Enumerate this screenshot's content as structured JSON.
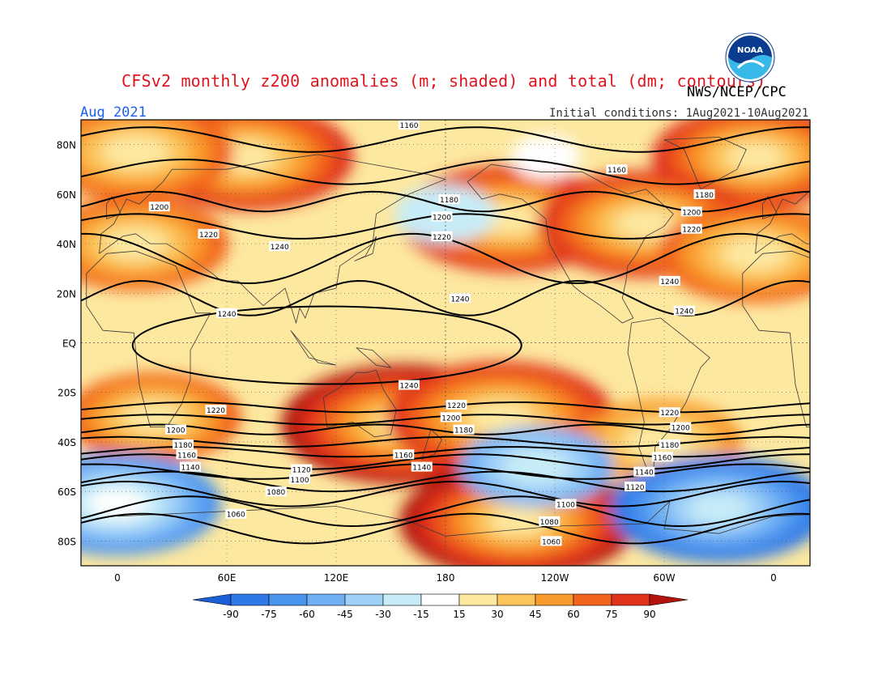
{
  "header": {
    "title": "CFSv2 monthly z200 anomalies (m; shaded) and total (dm; contours)",
    "agency": "NWS/NCEP/CPC",
    "month": "Aug 2021",
    "initial_conditions": "Initial conditions: 1Aug2021-10Aug2021",
    "logo_text": "NOAA"
  },
  "map": {
    "lon_range": [
      -20,
      380
    ],
    "lat_range": [
      -90,
      90
    ],
    "lat_ticks": [
      {
        "lat": 80,
        "label": "80N"
      },
      {
        "lat": 60,
        "label": "60N"
      },
      {
        "lat": 40,
        "label": "40N"
      },
      {
        "lat": 20,
        "label": "20N"
      },
      {
        "lat": 0,
        "label": "EQ"
      },
      {
        "lat": -20,
        "label": "20S"
      },
      {
        "lat": -40,
        "label": "40S"
      },
      {
        "lat": -60,
        "label": "60S"
      },
      {
        "lat": -80,
        "label": "80S"
      }
    ],
    "lon_ticks": [
      {
        "lon": 0,
        "label": "0"
      },
      {
        "lon": 60,
        "label": "60E"
      },
      {
        "lon": 120,
        "label": "120E"
      },
      {
        "lon": 180,
        "label": "180"
      },
      {
        "lon": 240,
        "label": "120W"
      },
      {
        "lon": 300,
        "label": "60W"
      },
      {
        "lon": 360,
        "label": "0"
      }
    ],
    "contour_labels": [
      {
        "lon": 160,
        "lat": 88,
        "text": "1160"
      },
      {
        "lon": 274,
        "lat": 70,
        "text": "1160"
      },
      {
        "lon": 182,
        "lat": 58,
        "text": "1180"
      },
      {
        "lon": 322,
        "lat": 60,
        "text": "1180"
      },
      {
        "lon": 23,
        "lat": 55,
        "text": "1200"
      },
      {
        "lon": 178,
        "lat": 51,
        "text": "1200"
      },
      {
        "lon": 315,
        "lat": 53,
        "text": "1200"
      },
      {
        "lon": 50,
        "lat": 44,
        "text": "1220"
      },
      {
        "lon": 178,
        "lat": 43,
        "text": "1220"
      },
      {
        "lon": 315,
        "lat": 46,
        "text": "1220"
      },
      {
        "lon": 89,
        "lat": 39,
        "text": "1240"
      },
      {
        "lon": 188,
        "lat": 18,
        "text": "1240"
      },
      {
        "lon": 303,
        "lat": 25,
        "text": "1240"
      },
      {
        "lon": 311,
        "lat": 13,
        "text": "1240"
      },
      {
        "lon": 60,
        "lat": 12,
        "text": "1240"
      },
      {
        "lon": 160,
        "lat": -17,
        "text": "1240"
      },
      {
        "lon": 54,
        "lat": -27,
        "text": "1220"
      },
      {
        "lon": 186,
        "lat": -25,
        "text": "1220"
      },
      {
        "lon": 303,
        "lat": -28,
        "text": "1220"
      },
      {
        "lon": 183,
        "lat": -30,
        "text": "1200"
      },
      {
        "lon": 309,
        "lat": -34,
        "text": "1200"
      },
      {
        "lon": 32,
        "lat": -35,
        "text": "1200"
      },
      {
        "lon": 190,
        "lat": -35,
        "text": "1180"
      },
      {
        "lon": 303,
        "lat": -41,
        "text": "1180"
      },
      {
        "lon": 36,
        "lat": -41,
        "text": "1180"
      },
      {
        "lon": 299,
        "lat": -46,
        "text": "1160"
      },
      {
        "lon": 38,
        "lat": -45,
        "text": "1160"
      },
      {
        "lon": 157,
        "lat": -45,
        "text": "1160"
      },
      {
        "lon": 40,
        "lat": -50,
        "text": "1140"
      },
      {
        "lon": 167,
        "lat": -50,
        "text": "1140"
      },
      {
        "lon": 289,
        "lat": -52,
        "text": "1140"
      },
      {
        "lon": 101,
        "lat": -51,
        "text": "1120"
      },
      {
        "lon": 284,
        "lat": -58,
        "text": "1120"
      },
      {
        "lon": 100,
        "lat": -55,
        "text": "1100"
      },
      {
        "lon": 246,
        "lat": -65,
        "text": "1100"
      },
      {
        "lon": 87,
        "lat": -60,
        "text": "1080"
      },
      {
        "lon": 237,
        "lat": -72,
        "text": "1080"
      },
      {
        "lon": 65,
        "lat": -69,
        "text": "1060"
      },
      {
        "lon": 238,
        "lat": -80,
        "text": "1060"
      }
    ]
  },
  "chart_data": {
    "type": "heatmap",
    "title": "CFSv2 monthly z200 anomalies (m; shaded) and total (dm; contours)",
    "colorbar": {
      "levels": [
        -90,
        -75,
        -60,
        -45,
        -30,
        -15,
        15,
        30,
        45,
        60,
        75,
        90
      ],
      "level_labels": [
        "-90",
        "-75",
        "-60",
        "-45",
        "-30",
        "-15",
        "15",
        "30",
        "45",
        "60",
        "75",
        "90"
      ],
      "colors": [
        "#1a5fd6",
        "#2e78e8",
        "#4a93ef",
        "#6fb0f4",
        "#9fd0f8",
        "#c7ecf7",
        "#ffffff",
        "#fde8a0",
        "#fcc45a",
        "#f99a2c",
        "#f2641c",
        "#e1321a",
        "#b3120e"
      ]
    },
    "anomaly_features": [
      {
        "lon": 70,
        "lat": 75,
        "value": 80
      },
      {
        "lon": 10,
        "lat": 77,
        "value": 70
      },
      {
        "lon": 350,
        "lat": 75,
        "value": 75
      },
      {
        "lon": 215,
        "lat": 50,
        "value": 80
      },
      {
        "lon": 290,
        "lat": 48,
        "value": 80
      },
      {
        "lon": 10,
        "lat": 40,
        "value": 65
      },
      {
        "lon": 350,
        "lat": 36,
        "value": 70
      },
      {
        "lon": 158,
        "lat": -33,
        "value": 95
      },
      {
        "lon": 210,
        "lat": -30,
        "value": 85
      },
      {
        "lon": 220,
        "lat": -72,
        "value": 90
      },
      {
        "lon": 20,
        "lat": -30,
        "value": 60
      },
      {
        "lon": 298,
        "lat": -40,
        "value": 55
      },
      {
        "lon": 0,
        "lat": -65,
        "value": -75
      },
      {
        "lon": 330,
        "lat": -67,
        "value": -80
      },
      {
        "lon": 230,
        "lat": -50,
        "value": -50
      },
      {
        "lon": 180,
        "lat": 52,
        "value": -25
      },
      {
        "lon": 235,
        "lat": 75,
        "value": -10
      }
    ]
  }
}
